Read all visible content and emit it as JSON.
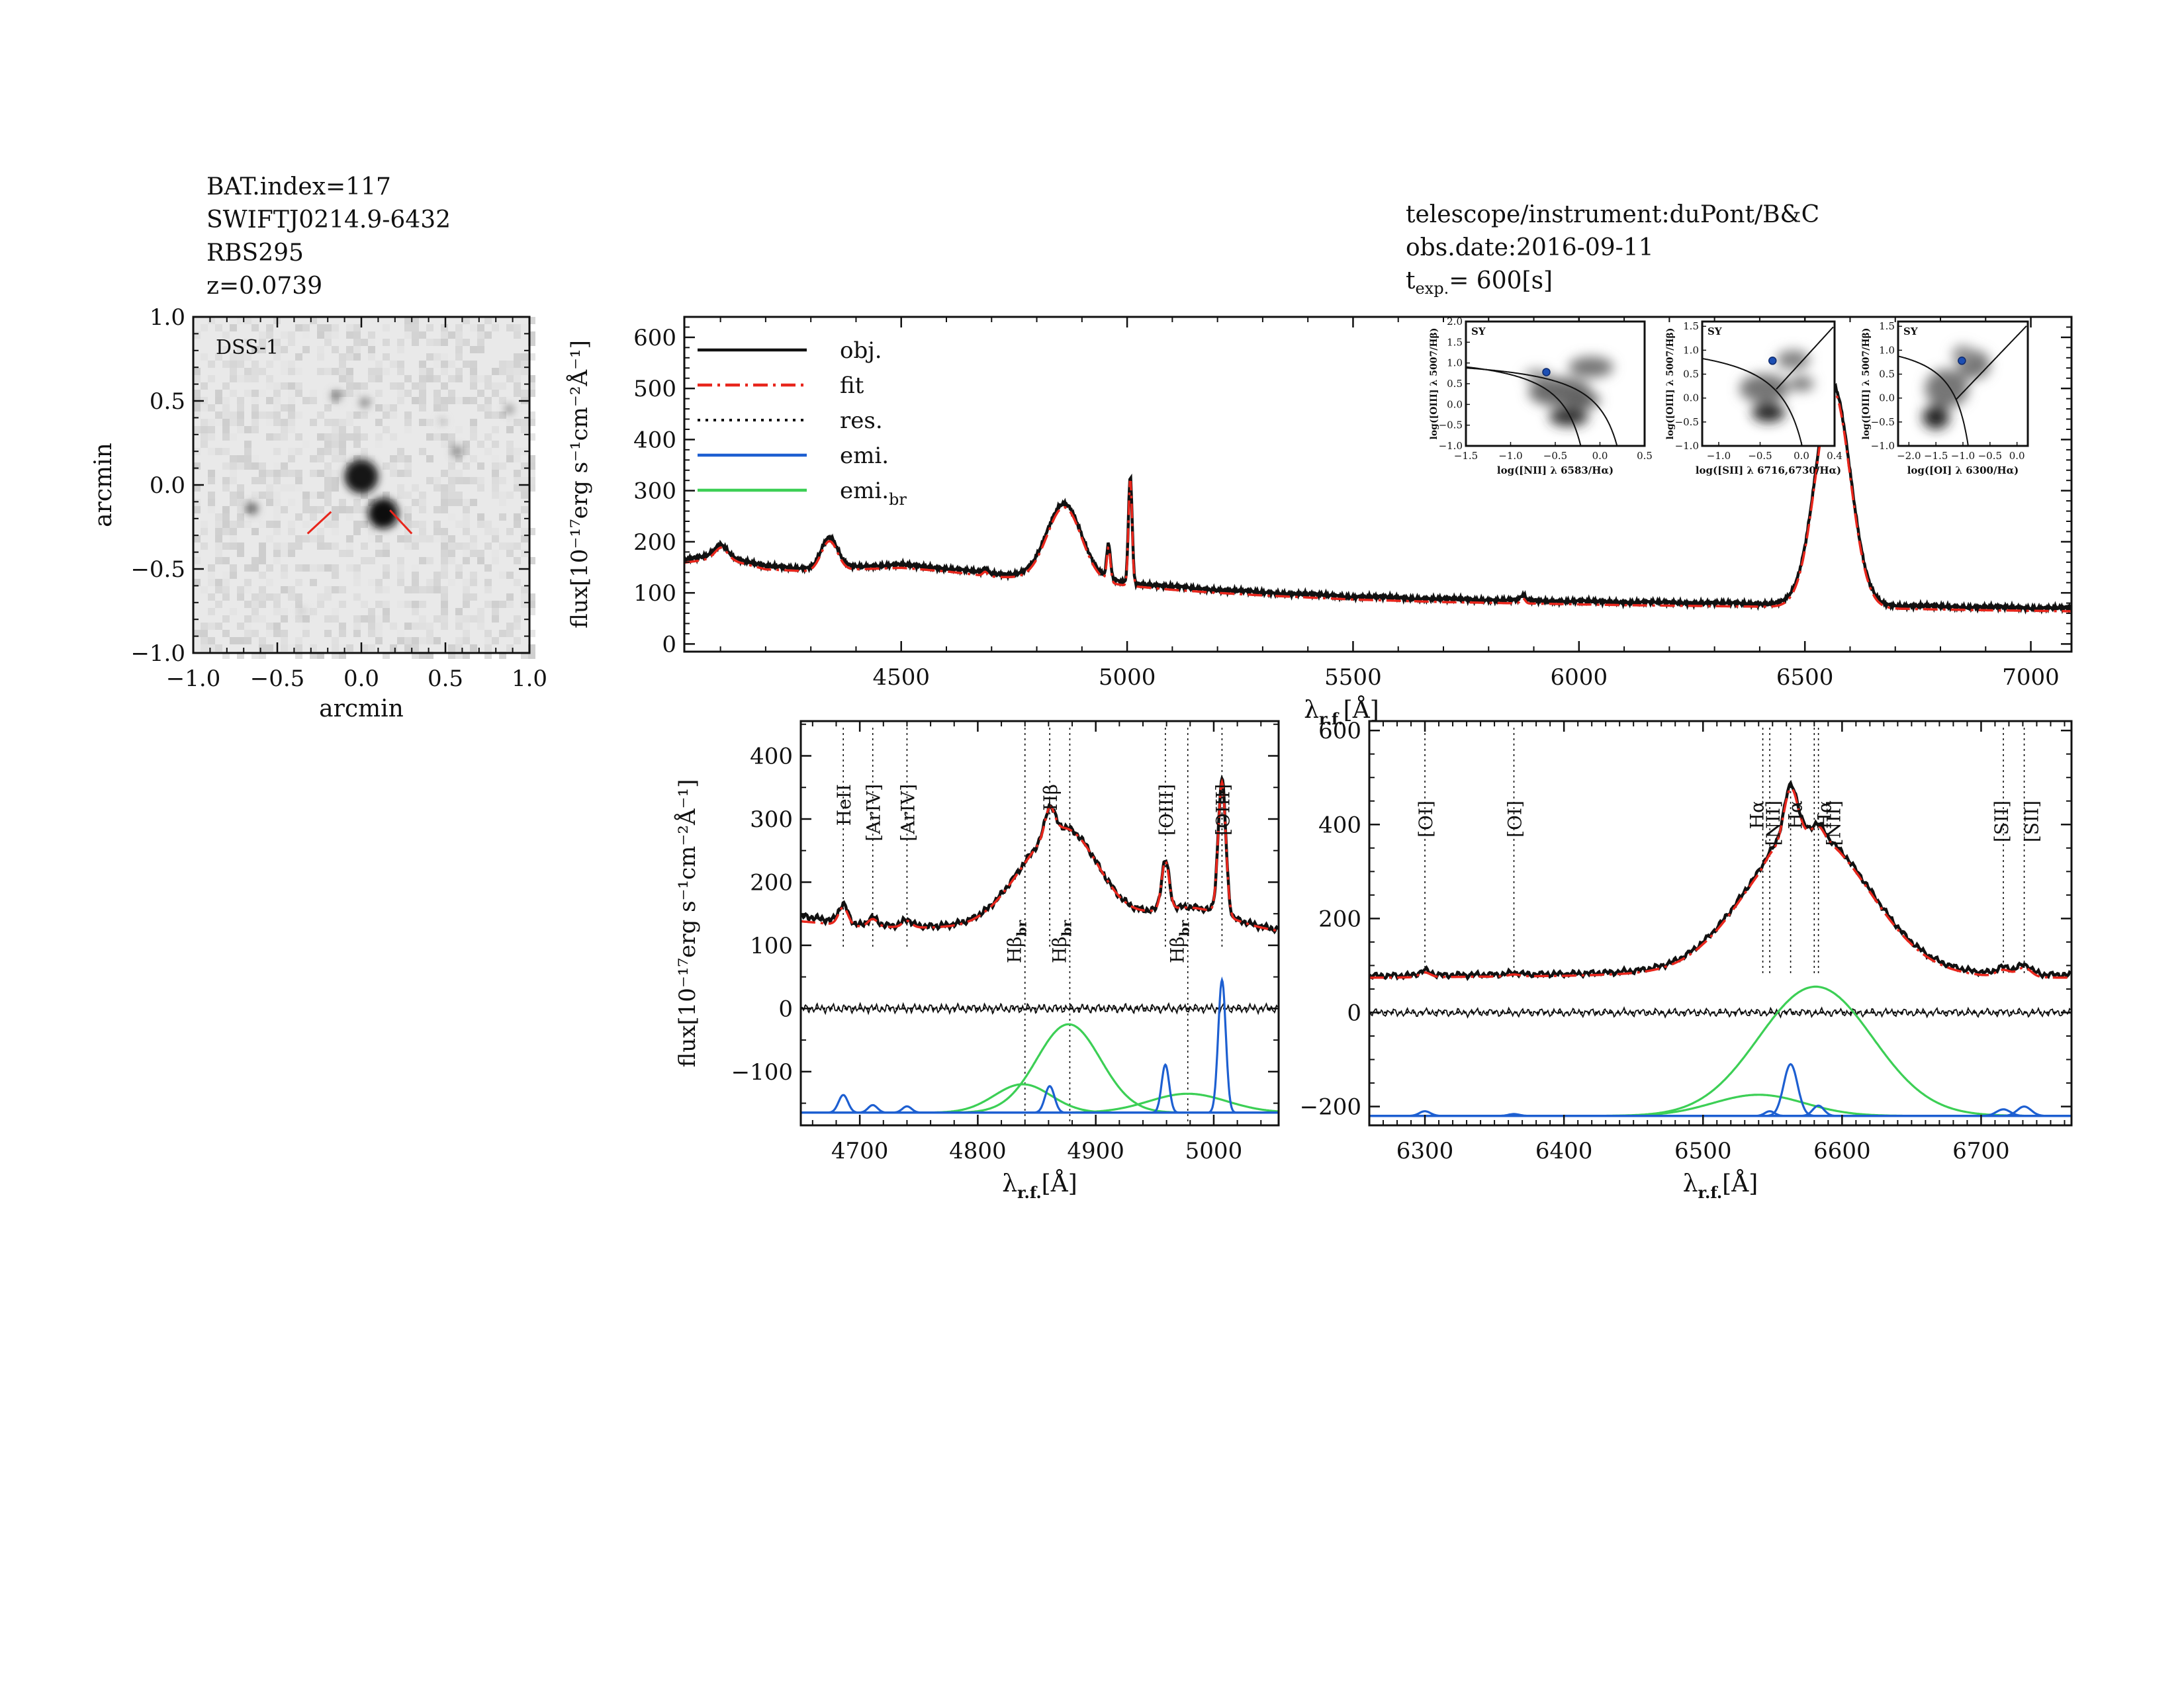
{
  "header_left": {
    "bat_index": "BAT.index=117",
    "swift_name": "SWIFTJ0214.9-6432",
    "counterpart": "RBS295",
    "redshift": "z=0.0739"
  },
  "header_right": {
    "instrument": "telescope/instrument:duPont/B&C",
    "obs_date": "obs.date:2016-09-11",
    "texp_prefix": "t",
    "texp_sub": "exp.",
    "texp_value": "=  600[s]"
  },
  "colors": {
    "obj": "#111111",
    "fit": "#e8261c",
    "res": "#111111",
    "emi": "#1d5fd1",
    "emi_br": "#3ccf55"
  },
  "chart_data": [
    {
      "id": "dss_image",
      "type": "image",
      "label": "DSS-1",
      "xlabel": "arcmin",
      "ylabel": "arcmin",
      "xlim": [
        -1.0,
        1.0
      ],
      "ylim": [
        -1.0,
        1.0
      ],
      "xticks": [
        "−1.0",
        "−0.5",
        "0.0",
        "0.5",
        "1.0"
      ],
      "yticks": [
        "−1.0",
        "−0.5",
        "0.0",
        "0.5",
        "1.0"
      ],
      "sources": [
        {
          "x": 0.0,
          "y": 0.05,
          "r": 0.1,
          "density": 0.92
        },
        {
          "x": 0.13,
          "y": -0.17,
          "r": 0.09,
          "density": 0.95
        },
        {
          "x": -0.65,
          "y": -0.14,
          "r": 0.035,
          "density": 0.6
        },
        {
          "x": -0.15,
          "y": 0.53,
          "r": 0.03,
          "density": 0.5
        },
        {
          "x": 0.02,
          "y": 0.49,
          "r": 0.03,
          "density": 0.45
        },
        {
          "x": 0.57,
          "y": 0.2,
          "r": 0.03,
          "density": 0.5
        },
        {
          "x": 0.88,
          "y": 0.45,
          "r": 0.025,
          "density": 0.45
        },
        {
          "x": 0.48,
          "y": 0.38,
          "r": 0.02,
          "density": 0.25
        },
        {
          "x": -0.35,
          "y": -0.75,
          "r": 0.02,
          "density": 0.2
        }
      ],
      "marker_lines": [
        {
          "x1": -0.32,
          "y1": -0.29,
          "x2": -0.18,
          "y2": -0.16
        },
        {
          "x1": 0.17,
          "y1": -0.15,
          "x2": 0.3,
          "y2": -0.29
        }
      ]
    },
    {
      "id": "full_spectrum",
      "type": "line",
      "xlabel_main": "λ",
      "xlabel_sub": "r.f.",
      "xlabel_unit": "[Å]",
      "ylabel": "flux[10⁻¹⁷erg s⁻¹cm⁻²Å⁻¹]",
      "xlim": [
        4020,
        7090
      ],
      "ylim": [
        -15,
        640
      ],
      "xticks": [
        4500,
        5000,
        5500,
        6000,
        6500,
        7000
      ],
      "yticks": [
        0,
        100,
        200,
        300,
        400,
        500,
        600
      ],
      "continuum": [
        [
          4020,
          165
        ],
        [
          4100,
          175
        ],
        [
          4200,
          152
        ],
        [
          4300,
          148
        ],
        [
          4400,
          152
        ],
        [
          4500,
          155
        ],
        [
          4600,
          148
        ],
        [
          4700,
          138
        ],
        [
          4800,
          133
        ],
        [
          4900,
          128
        ],
        [
          5000,
          120
        ],
        [
          5100,
          112
        ],
        [
          5200,
          106
        ],
        [
          5300,
          101
        ],
        [
          5400,
          97
        ],
        [
          5500,
          93
        ],
        [
          5700,
          88
        ],
        [
          5900,
          85
        ],
        [
          6100,
          82
        ],
        [
          6300,
          80
        ],
        [
          6500,
          78
        ],
        [
          6700,
          75
        ],
        [
          6900,
          72
        ],
        [
          7090,
          70
        ]
      ],
      "lines": [
        {
          "center": 4102,
          "sigma": 14,
          "amp": 20
        },
        {
          "center": 4341,
          "sigma": 18,
          "amp": 58
        },
        {
          "center": 4686,
          "sigma": 5,
          "amp": 8
        },
        {
          "center": 4861,
          "sigma": 38,
          "amp": 145
        },
        {
          "center": 4959,
          "sigma": 4,
          "amp": 68
        },
        {
          "center": 5007,
          "sigma": 4,
          "amp": 212
        },
        {
          "center": 5876,
          "sigma": 5,
          "amp": 10
        },
        {
          "center": 6562,
          "sigma": 38,
          "amp": 430
        }
      ],
      "legend": [
        {
          "label": "obj.",
          "style": "solid",
          "color": "#111111"
        },
        {
          "label": "fit",
          "style": "dashdot",
          "color": "#e8261c"
        },
        {
          "label": "res.",
          "style": "dotted",
          "color": "#111111"
        },
        {
          "label": "emi.",
          "style": "solid",
          "color": "#1d5fd1"
        },
        {
          "label": "emi.",
          "label_sub": "br",
          "style": "solid",
          "color": "#3ccf55"
        }
      ]
    },
    {
      "id": "bpt_nii",
      "type": "scatter",
      "tag": "SY",
      "xlabel": "log([NII] λ 6583/Hα)",
      "ylabel": "log([OIII] λ 5007/Hβ)",
      "xlim": [
        -1.5,
        0.5
      ],
      "ylim": [
        -1.0,
        2.0
      ],
      "xticks": [
        "−1.5",
        "−1.0",
        "−0.5",
        "0.0",
        "0.5"
      ],
      "yticks": [
        "−1.0",
        "−0.5",
        "0.0",
        "0.5",
        "1.0",
        "1.5",
        "2.0"
      ],
      "point": {
        "x": -0.6,
        "y": 0.78
      }
    },
    {
      "id": "bpt_sii",
      "type": "scatter",
      "tag": "SY",
      "xlabel": "log([SII] λ 6716,6730/Hα)",
      "ylabel": "log([OIII] λ 5007/Hβ)",
      "xlim": [
        -1.2,
        0.4
      ],
      "ylim": [
        -1.0,
        1.6
      ],
      "xticks": [
        "−1.0",
        "−0.5",
        "0.0",
        "0.4"
      ],
      "yticks": [
        "−1.0",
        "−0.5",
        "0.0",
        "0.5",
        "1.0",
        "1.5"
      ],
      "point": {
        "x": -0.35,
        "y": 0.78
      }
    },
    {
      "id": "bpt_oi",
      "type": "scatter",
      "tag": "SY",
      "xlabel": "log([OI] λ 6300/Hα)",
      "ylabel": "log([OIII] λ 5007/Hβ)",
      "xlim": [
        -2.2,
        0.2
      ],
      "ylim": [
        -1.0,
        1.6
      ],
      "xticks": [
        "−2.0",
        "−1.5",
        "−1.0",
        "−0.5",
        "0.0"
      ],
      "yticks": [
        "−1.0",
        "−0.5",
        "0.0",
        "0.5",
        "1.0",
        "1.5"
      ],
      "point": {
        "x": -1.02,
        "y": 0.78
      }
    },
    {
      "id": "hbeta_region",
      "type": "line",
      "xlabel_main": "λ",
      "xlabel_sub": "r.f.",
      "xlabel_unit": "[Å]",
      "ylabel": "flux[10⁻¹⁷erg s⁻¹cm⁻²Å⁻¹]",
      "xlim": [
        4650,
        5055
      ],
      "ylim": [
        -185,
        455
      ],
      "xticks": [
        4700,
        4800,
        4900,
        5000
      ],
      "yticks": [
        -100,
        0,
        100,
        200,
        300,
        400
      ],
      "baseline": -165,
      "top_labels": [
        {
          "label": "HeII",
          "x": 4686
        },
        {
          "label": "[ArIV]",
          "x": 4711
        },
        {
          "label": "[ArIV]",
          "x": 4740
        },
        {
          "label": "Hβ",
          "x": 4861
        },
        {
          "label": "[OIII]",
          "x": 4959
        },
        {
          "label": "[OIII]",
          "x": 5007
        }
      ],
      "bottom_labels": [
        {
          "label": "Hβ",
          "sub": "br",
          "x": 4840
        },
        {
          "label": "Hβ",
          "sub": "br",
          "x": 4878
        },
        {
          "label": "Hβ",
          "sub": "br",
          "x": 4978
        }
      ],
      "obj_continuum": [
        [
          4650,
          147
        ],
        [
          4700,
          132
        ],
        [
          4760,
          130
        ],
        [
          4800,
          132
        ],
        [
          4900,
          133
        ],
        [
          5000,
          130
        ],
        [
          5055,
          123
        ]
      ],
      "fit_continuum": [
        [
          4650,
          138
        ],
        [
          4700,
          130
        ],
        [
          4760,
          128
        ],
        [
          4800,
          130
        ],
        [
          4900,
          132
        ],
        [
          5000,
          129
        ],
        [
          5055,
          121
        ]
      ],
      "broad": [
        {
          "center": 4838,
          "sigma": 24,
          "amp": 45
        },
        {
          "center": 4877,
          "sigma": 27,
          "amp": 140
        },
        {
          "center": 4978,
          "sigma": 33,
          "amp": 30
        }
      ],
      "narrow": [
        {
          "center": 4686,
          "sigma": 4,
          "amp": 28
        },
        {
          "center": 4711,
          "sigma": 4,
          "amp": 12
        },
        {
          "center": 4740,
          "sigma": 4,
          "amp": 10
        },
        {
          "center": 4861,
          "sigma": 4,
          "amp": 42
        },
        {
          "center": 4959,
          "sigma": 3.2,
          "amp": 76
        },
        {
          "center": 5007,
          "sigma": 3.2,
          "amp": 210
        }
      ]
    },
    {
      "id": "halpha_region",
      "type": "line",
      "xlabel_main": "λ",
      "xlabel_sub": "r.f.",
      "xlabel_unit": "[Å]",
      "xlim": [
        6260,
        6765
      ],
      "ylim": [
        -240,
        620
      ],
      "xticks": [
        6300,
        6400,
        6500,
        6600,
        6700
      ],
      "yticks": [
        -200,
        0,
        200,
        400,
        600
      ],
      "baseline": -220,
      "top_labels": [
        {
          "label": "[OI]",
          "x": 6300,
          "color": "#111111"
        },
        {
          "label": "[OI]",
          "x": 6364,
          "color": "#e8261c"
        },
        {
          "label": "Hα",
          "x": 6543,
          "color": "#111111"
        },
        {
          "label": "[NII]",
          "x": 6548,
          "color": "#111111"
        },
        {
          "label": "Hα",
          "x": 6563,
          "color": "#111111"
        },
        {
          "label": "Hα",
          "x": 6580,
          "color": "#111111"
        },
        {
          "label": "[NII]",
          "x": 6583,
          "color": "#111111"
        },
        {
          "label": "[SII]",
          "x": 6716,
          "color": "#111111"
        },
        {
          "label": "[SII]",
          "x": 6731,
          "color": "#111111"
        }
      ],
      "obj_continuum": [
        [
          6260,
          78
        ],
        [
          6400,
          82
        ],
        [
          6500,
          90
        ],
        [
          6600,
          85
        ],
        [
          6700,
          82
        ],
        [
          6765,
          80
        ]
      ],
      "fit_continuum": [
        [
          6260,
          74
        ],
        [
          6400,
          78
        ],
        [
          6500,
          85
        ],
        [
          6600,
          80
        ],
        [
          6700,
          76
        ],
        [
          6765,
          74
        ]
      ],
      "broad": [
        {
          "center": 6540,
          "sigma": 33,
          "amp": 45
        },
        {
          "center": 6581,
          "sigma": 41,
          "amp": 275
        }
      ],
      "narrow": [
        {
          "center": 6300,
          "sigma": 4,
          "amp": 10
        },
        {
          "center": 6364,
          "sigma": 4,
          "amp": 4
        },
        {
          "center": 6548,
          "sigma": 3.5,
          "amp": 10
        },
        {
          "center": 6563,
          "sigma": 5,
          "amp": 110
        },
        {
          "center": 6583,
          "sigma": 4,
          "amp": 22
        },
        {
          "center": 6716,
          "sigma": 5,
          "amp": 14
        },
        {
          "center": 6731,
          "sigma": 5,
          "amp": 20
        }
      ]
    }
  ]
}
